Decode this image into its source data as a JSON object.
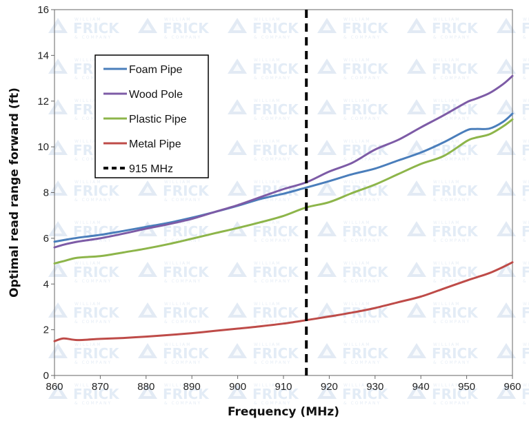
{
  "watermark": {
    "text": "FRICK",
    "small_text_top": "WILLIAM",
    "small_text_bottom": "& COMPANY",
    "color": "#dfe8f3"
  },
  "chart_data": {
    "type": "line",
    "title": "",
    "xlabel": "Frequency (MHz)",
    "ylabel": "Optimal read range forward (ft)",
    "xlim": [
      860,
      960
    ],
    "ylim": [
      0,
      16
    ],
    "x_ticks": [
      860,
      870,
      880,
      890,
      900,
      910,
      920,
      930,
      940,
      950,
      960
    ],
    "y_ticks": [
      0,
      2,
      4,
      6,
      8,
      10,
      12,
      14,
      16
    ],
    "grid": false,
    "legend_position": "upper-left",
    "x": [
      860,
      862,
      865,
      870,
      875,
      880,
      885,
      890,
      895,
      900,
      905,
      910,
      915,
      920,
      925,
      930,
      935,
      940,
      945,
      950,
      952,
      955,
      958,
      960
    ],
    "series": [
      {
        "name": "Foam Pipe",
        "color": "#4a7ebb",
        "values": [
          5.85,
          5.92,
          6.02,
          6.15,
          6.32,
          6.5,
          6.68,
          6.9,
          7.15,
          7.42,
          7.72,
          7.95,
          8.22,
          8.5,
          8.8,
          9.05,
          9.4,
          9.75,
          10.2,
          10.72,
          10.78,
          10.8,
          11.1,
          11.45
        ]
      },
      {
        "name": "Wood Pole",
        "color": "#7d5ba6",
        "values": [
          5.6,
          5.72,
          5.85,
          6.0,
          6.2,
          6.42,
          6.62,
          6.85,
          7.15,
          7.45,
          7.8,
          8.15,
          8.45,
          8.92,
          9.3,
          9.88,
          10.3,
          10.85,
          11.38,
          11.95,
          12.1,
          12.35,
          12.75,
          13.1
        ]
      },
      {
        "name": "Plastic Pipe",
        "color": "#8db54a",
        "values": [
          4.9,
          5.0,
          5.15,
          5.22,
          5.38,
          5.55,
          5.75,
          5.98,
          6.22,
          6.45,
          6.7,
          6.98,
          7.35,
          7.58,
          7.98,
          8.35,
          8.8,
          9.25,
          9.6,
          10.25,
          10.4,
          10.55,
          10.9,
          11.2
        ]
      },
      {
        "name": "Metal Pipe",
        "color": "#be4b48",
        "values": [
          1.5,
          1.62,
          1.55,
          1.6,
          1.64,
          1.7,
          1.77,
          1.85,
          1.95,
          2.05,
          2.15,
          2.27,
          2.42,
          2.58,
          2.75,
          2.95,
          3.2,
          3.45,
          3.8,
          4.15,
          4.28,
          4.48,
          4.75,
          4.95
        ]
      }
    ],
    "annotations": [
      {
        "name": "915 MHz",
        "type": "vertical-line",
        "x": 915,
        "style": "dashed",
        "color": "#000000"
      }
    ]
  }
}
